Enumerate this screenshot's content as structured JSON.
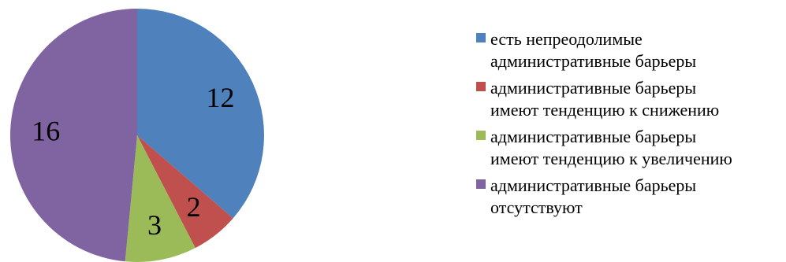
{
  "chart_data": {
    "type": "pie",
    "values": [
      12,
      2,
      3,
      16
    ],
    "labels": [
      "есть непреодолимые административные барьеры",
      "административные барьеры имеют тенденцию к снижению",
      "административные барьеры имеют тенденцию к увеличению",
      "административные барьеры отсутствуют"
    ],
    "data_labels": [
      "12",
      "2",
      "3",
      "16"
    ],
    "colors": [
      "#4F81BD",
      "#C0504D",
      "#9BBB59",
      "#8064A2"
    ],
    "start_angle": "12 o'clock",
    "direction": "clockwise",
    "legend_position": "right"
  },
  "legend": {
    "items": [
      {
        "line1": "есть непреодолимые",
        "line2": "административные барьеры",
        "color": "#4F81BD"
      },
      {
        "line1": "административные барьеры",
        "line2": "имеют тенденцию к снижению",
        "color": "#C0504D"
      },
      {
        "line1": "административные барьеры",
        "line2": "имеют тенденцию к увеличению",
        "color": "#9BBB59"
      },
      {
        "line1": "административные барьеры",
        "line2": "отсутствуют",
        "color": "#8064A2"
      }
    ]
  }
}
